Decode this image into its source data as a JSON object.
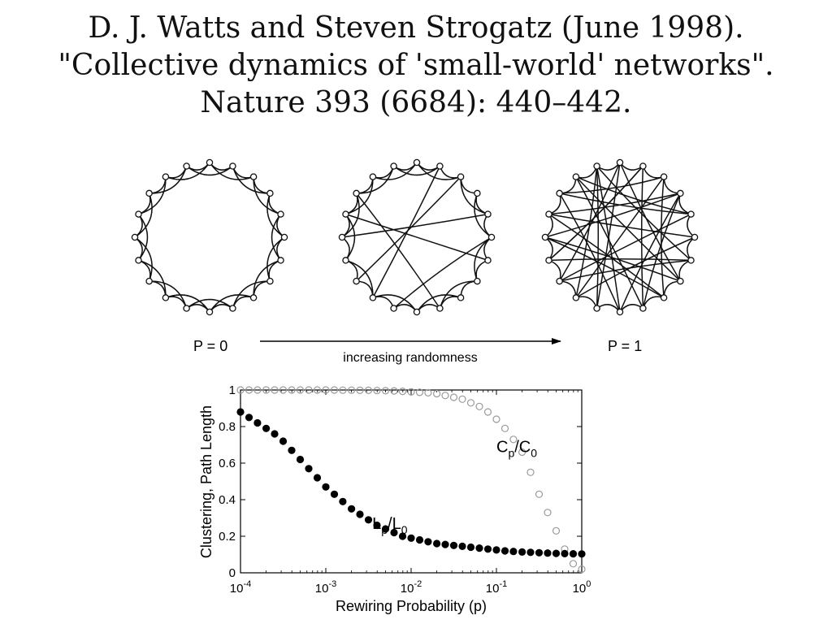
{
  "slide": {
    "title_lines": [
      "D. J. Watts and Steven Strogatz (June 1998).",
      "\"Collective dynamics of 'small-world' networks\".",
      "Nature 393 (6684): 440–442."
    ]
  },
  "networks": {
    "node_count": 20,
    "label_left": "P = 0",
    "label_right": "P = 1",
    "arrow_label": "increasing randomness",
    "rings": [
      {
        "name": "regular",
        "extra_edges": []
      },
      {
        "name": "small-world",
        "extra_edges": [
          [
            1,
            12
          ],
          [
            4,
            15
          ],
          [
            6,
            16
          ],
          [
            13,
            2
          ],
          [
            9,
            17
          ],
          [
            11,
            5
          ]
        ]
      },
      {
        "name": "random",
        "extra_edges": [
          [
            0,
            7
          ],
          [
            0,
            11
          ],
          [
            1,
            9
          ],
          [
            1,
            14
          ],
          [
            2,
            12
          ],
          [
            2,
            17
          ],
          [
            3,
            10
          ],
          [
            3,
            15
          ],
          [
            4,
            13
          ],
          [
            4,
            18
          ],
          [
            5,
            12
          ],
          [
            5,
            16
          ],
          [
            6,
            14
          ],
          [
            6,
            19
          ],
          [
            7,
            15
          ],
          [
            8,
            16
          ],
          [
            8,
            2
          ],
          [
            9,
            18
          ],
          [
            10,
            17
          ],
          [
            11,
            19
          ],
          [
            12,
            19
          ],
          [
            13,
            6
          ],
          [
            14,
            1
          ],
          [
            15,
            8
          ],
          [
            16,
            3
          ],
          [
            17,
            4
          ],
          [
            18,
            7
          ],
          [
            19,
            10
          ],
          [
            0,
            13
          ],
          [
            9,
            3
          ]
        ]
      }
    ]
  },
  "chart_data": {
    "type": "scatter",
    "xlabel": "Rewiring Probability (p)",
    "ylabel": "Clustering, Path Length",
    "xscale": "log",
    "xlim": [
      0.0001,
      1
    ],
    "ylim": [
      0,
      1
    ],
    "x_tick_labels": [
      "10^-4",
      "10^-3",
      "10^-2",
      "10^-1",
      "10^0"
    ],
    "y_tick_labels": [
      "0",
      "0.2",
      "0.4",
      "0.6",
      "0.8",
      "1"
    ],
    "grid": false,
    "series": [
      {
        "name": "C_p/C_0",
        "marker": "open-circle",
        "color": "#9a9a9a",
        "x": [
          0.0001,
          0.000126,
          0.000158,
          0.0002,
          0.000251,
          0.000316,
          0.000398,
          0.000501,
          0.000631,
          0.000794,
          0.001,
          0.00126,
          0.00158,
          0.002,
          0.00251,
          0.00316,
          0.00398,
          0.00501,
          0.00631,
          0.00794,
          0.01,
          0.0126,
          0.0158,
          0.02,
          0.0251,
          0.0316,
          0.0398,
          0.0501,
          0.0631,
          0.0794,
          0.1,
          0.126,
          0.158,
          0.2,
          0.251,
          0.316,
          0.398,
          0.501,
          0.631,
          0.794,
          1
        ],
        "values": [
          1.0,
          1.0,
          1.0,
          1.0,
          1.0,
          1.0,
          1.0,
          1.0,
          1.0,
          1.0,
          1.0,
          1.0,
          0.999,
          0.999,
          0.998,
          0.998,
          0.997,
          0.996,
          0.995,
          0.993,
          0.99,
          0.987,
          0.985,
          0.98,
          0.97,
          0.96,
          0.95,
          0.93,
          0.91,
          0.88,
          0.84,
          0.79,
          0.73,
          0.66,
          0.55,
          0.43,
          0.33,
          0.23,
          0.13,
          0.05,
          0.02
        ]
      },
      {
        "name": "L_p/L_0",
        "marker": "filled-circle",
        "color": "#000000",
        "x": [
          0.0001,
          0.000126,
          0.000158,
          0.0002,
          0.000251,
          0.000316,
          0.000398,
          0.000501,
          0.000631,
          0.000794,
          0.001,
          0.00126,
          0.00158,
          0.002,
          0.00251,
          0.00316,
          0.00398,
          0.00501,
          0.00631,
          0.00794,
          0.01,
          0.0126,
          0.0158,
          0.02,
          0.0251,
          0.0316,
          0.0398,
          0.0501,
          0.0631,
          0.0794,
          0.1,
          0.126,
          0.158,
          0.2,
          0.251,
          0.316,
          0.398,
          0.501,
          0.631,
          0.794,
          1
        ],
        "values": [
          0.88,
          0.85,
          0.82,
          0.79,
          0.76,
          0.72,
          0.67,
          0.62,
          0.57,
          0.52,
          0.47,
          0.43,
          0.39,
          0.35,
          0.32,
          0.29,
          0.26,
          0.24,
          0.22,
          0.2,
          0.19,
          0.18,
          0.17,
          0.16,
          0.155,
          0.15,
          0.145,
          0.14,
          0.135,
          0.13,
          0.125,
          0.12,
          0.117,
          0.114,
          0.112,
          0.11,
          0.108,
          0.106,
          0.105,
          0.104,
          0.103
        ]
      }
    ],
    "annotations": [
      {
        "base": "C",
        "sub": "p",
        "base2": "C",
        "sub2": "0",
        "at_x": 0.1,
        "at_y": 0.66
      },
      {
        "base": "L",
        "sub": "p",
        "base2": "L",
        "sub2": "0",
        "at_x": 0.0035,
        "at_y": 0.24
      }
    ]
  }
}
